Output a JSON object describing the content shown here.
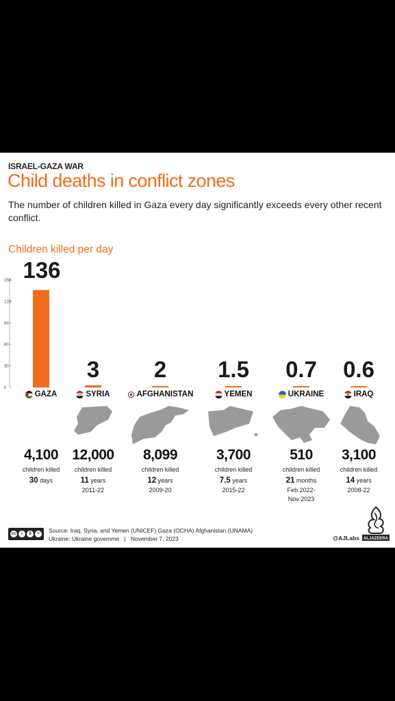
{
  "header": {
    "kicker": "ISRAEL-GAZA WAR",
    "title": "Child deaths in conflict zones",
    "subtitle": "The number of children killed in Gaza every day significantly exceeds every other recent conflict."
  },
  "chart_data": {
    "type": "bar",
    "ylabel": "Children killed per day",
    "categories": [
      "GAZA",
      "SYRIA",
      "AFGHANISTAN",
      "YEMEN",
      "UKRAINE",
      "IRAQ"
    ],
    "values": [
      136,
      3,
      2,
      1.5,
      0.7,
      0.6
    ],
    "value_labels": [
      "136",
      "3",
      "2",
      "1.5",
      "0.7",
      "0.6"
    ],
    "ylim": [
      0,
      150
    ],
    "yticks": [
      "0",
      "30",
      "60",
      "90",
      "120",
      "150"
    ],
    "bar_color": "#f26c1d",
    "grid": false
  },
  "countries": [
    {
      "name": "GAZA",
      "flag": "palestine-flag-icon",
      "count": "4,100",
      "killed": "children killed",
      "num": "30",
      "unit": "days",
      "period": ""
    },
    {
      "name": "SYRIA",
      "flag": "syria-flag-icon",
      "count": "12,000",
      "killed": "children killed",
      "num": "11",
      "unit": "years",
      "period": "2011-22"
    },
    {
      "name": "AFGHANISTAN",
      "flag": "afghanistan-flag-icon",
      "count": "8,099",
      "killed": "children killed",
      "num": "12",
      "unit": "years",
      "period": "2009-20"
    },
    {
      "name": "YEMEN",
      "flag": "yemen-flag-icon",
      "count": "3,700",
      "killed": "children killed",
      "num": "7.5",
      "unit": "years",
      "period": "2015-22"
    },
    {
      "name": "UKRAINE",
      "flag": "ukraine-flag-icon",
      "count": "510",
      "killed": "children killed",
      "num": "21",
      "unit": "months",
      "period": "Feb 2022-",
      "period2": "Nov 2023"
    },
    {
      "name": "IRAQ",
      "flag": "iraq-flag-icon",
      "count": "3,100",
      "killed": "children killed",
      "num": "14",
      "unit": "years",
      "period": "2008-22"
    }
  ],
  "footer": {
    "source_line1": "Source: Iraq, Syria, and Yemen (UNICEF) Gaza (OCHA) Afghanistan (UNAMA)",
    "source_line2": "Ukraine: Ukraine governme   |   November 7, 2023",
    "credit": "@AJLabs",
    "license_icon": "creative-commons-icon",
    "logo": "al-jazeera-logo"
  },
  "colors": {
    "accent": "#f26c1d",
    "map_gray": "#9a9a9a",
    "background": "#000000"
  }
}
